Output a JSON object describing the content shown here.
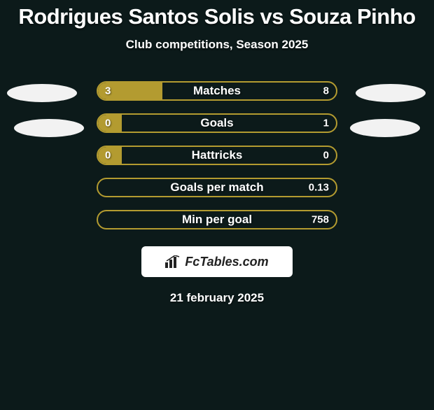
{
  "background_color": "#0c1a1a",
  "title": {
    "text": "Rodrigues Santos Solis vs Souza Pinho",
    "fontsize": 31,
    "color": "#ffffff"
  },
  "subtitle": {
    "text": "Club competitions, Season 2025",
    "fontsize": 17,
    "color": "#ffffff"
  },
  "bar_style": {
    "track_width": 344,
    "track_height": 28,
    "border_color": "#b39b30",
    "fill_color": "#b39b30",
    "label_fontsize": 17,
    "value_fontsize": 15,
    "text_color": "#ffffff"
  },
  "ellipse_color": "#f2f2f2",
  "rows": [
    {
      "label": "Matches",
      "left_val": "3",
      "right_val": "8",
      "fill_pct": 27,
      "show_ellipses": true,
      "ellipse_pos": "top"
    },
    {
      "label": "Goals",
      "left_val": "0",
      "right_val": "1",
      "fill_pct": 10,
      "show_ellipses": true,
      "ellipse_pos": "bottom"
    },
    {
      "label": "Hattricks",
      "left_val": "0",
      "right_val": "0",
      "fill_pct": 10,
      "show_ellipses": false
    },
    {
      "label": "Goals per match",
      "left_val": "",
      "right_val": "0.13",
      "fill_pct": 0,
      "show_ellipses": false
    },
    {
      "label": "Min per goal",
      "left_val": "",
      "right_val": "758",
      "fill_pct": 0,
      "show_ellipses": false
    }
  ],
  "brand": {
    "text": "FcTables.com",
    "fontsize": 18,
    "box_bg": "#ffffff",
    "text_color": "#222222"
  },
  "footer": {
    "text": "21 february 2025",
    "fontsize": 17,
    "color": "#ffffff"
  }
}
